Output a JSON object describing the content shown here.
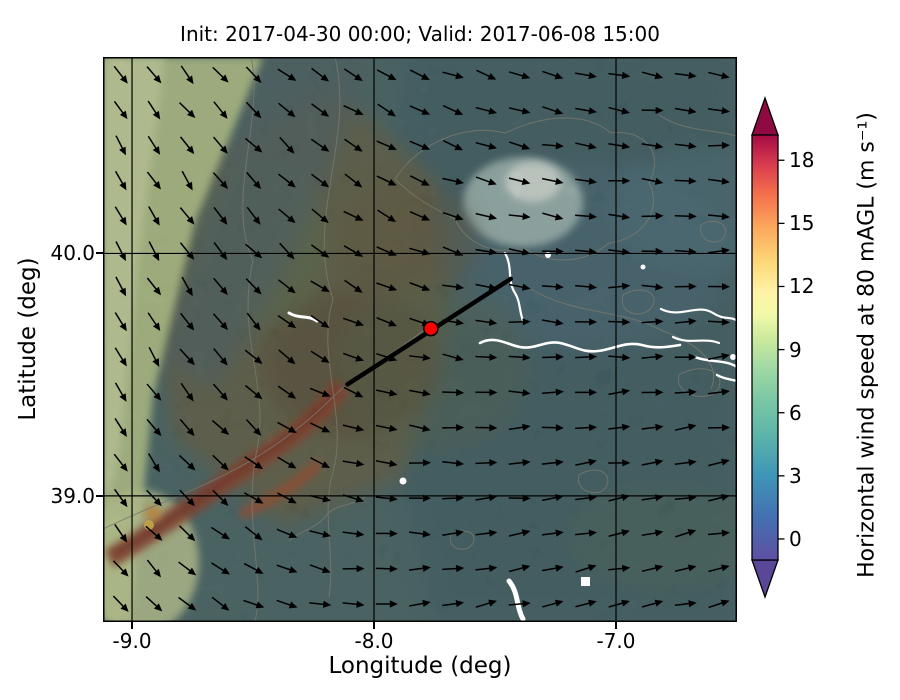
{
  "chart_data": {
    "type": "heatmap",
    "title": "Init: 2017-04-30 00:00; Valid: 2017-06-08 15:00",
    "init_time": "2017-04-30 00:00",
    "valid_time": "2017-06-08 15:00",
    "xlabel": "Longitude (deg)",
    "ylabel": "Latitude (deg)",
    "xlim": [
      -9.12,
      -6.5
    ],
    "ylim": [
      38.48,
      40.81
    ],
    "grid": true,
    "x_ticks": {
      "values": [
        -9.0,
        -8.0,
        -7.0
      ],
      "labels": [
        "-9.0",
        "-8.0",
        "-7.0"
      ]
    },
    "y_ticks": {
      "values": [
        39.0,
        40.0
      ],
      "labels": [
        "39.0",
        "40.0"
      ]
    },
    "colorbar": {
      "label": "Horizontal wind speed at 80 mAGL (m s⁻¹)",
      "ticks": [
        0,
        3,
        6,
        9,
        12,
        15,
        18
      ],
      "range": [
        -1,
        19.2
      ],
      "extend": "both",
      "colormap": "Spectral_r",
      "under_color": "#5a4798",
      "over_color": "#8f0a40",
      "stops": [
        {
          "f": 0.0,
          "color": "#5e4fa2"
        },
        {
          "f": 0.1,
          "color": "#4470b1"
        },
        {
          "f": 0.2,
          "color": "#3e96b7"
        },
        {
          "f": 0.3,
          "color": "#5fb6a9"
        },
        {
          "f": 0.38,
          "color": "#7bc8a4"
        },
        {
          "f": 0.46,
          "color": "#a6dba4"
        },
        {
          "f": 0.52,
          "color": "#cbea9d"
        },
        {
          "f": 0.58,
          "color": "#f3f9a8"
        },
        {
          "f": 0.63,
          "color": "#fff3a8"
        },
        {
          "f": 0.7,
          "color": "#fdd877"
        },
        {
          "f": 0.78,
          "color": "#fca95e"
        },
        {
          "f": 0.86,
          "color": "#f4704b"
        },
        {
          "f": 0.93,
          "color": "#d93c4e"
        },
        {
          "f": 1.0,
          "color": "#a50b44"
        }
      ]
    },
    "transect": {
      "start_lonlat": [
        -8.11,
        39.46
      ],
      "end_lonlat": [
        -7.435,
        39.895
      ],
      "line_color": "#000000",
      "line_width": 4.5,
      "marker_lonlat": [
        -7.765,
        39.69
      ],
      "marker_color": "#ff0000"
    },
    "wind_field": {
      "variable": "Horizontal wind speed at 80 mAGL",
      "units": "m s⁻¹",
      "angle_convention": "degrees CCW from east; direction arrows point toward",
      "control_grid": {
        "cols": 6,
        "rows": 5,
        "angles_deg": [
          [
            -55,
            -45,
            -30,
            -20,
            -12,
            -8
          ],
          [
            -62,
            -50,
            -32,
            -15,
            -6,
            -2
          ],
          [
            -60,
            -48,
            -22,
            -6,
            0,
            4
          ],
          [
            -55,
            -40,
            -12,
            4,
            8,
            10
          ],
          [
            -48,
            -28,
            0,
            12,
            14,
            14
          ]
        ]
      },
      "display_grid": {
        "cols": 19,
        "rows": 16
      }
    },
    "map_palette": {
      "base_sea_teal": "#4d6e6e",
      "right_half_teal": "#40636d",
      "upper_blue": "#4f7585",
      "calm_patch_light": "#ecf5ee",
      "terrain_olive": "#6e6847",
      "terrain_brown_dark": "#5e5036",
      "coastal_light_green": "#c3d794",
      "ridge_red": "#9a4a30",
      "ridge_core": "#7c2e1d",
      "hotspot_orange": "#e09a3a",
      "river_white": "#ffffff",
      "contour_grey": "#78786c"
    }
  }
}
